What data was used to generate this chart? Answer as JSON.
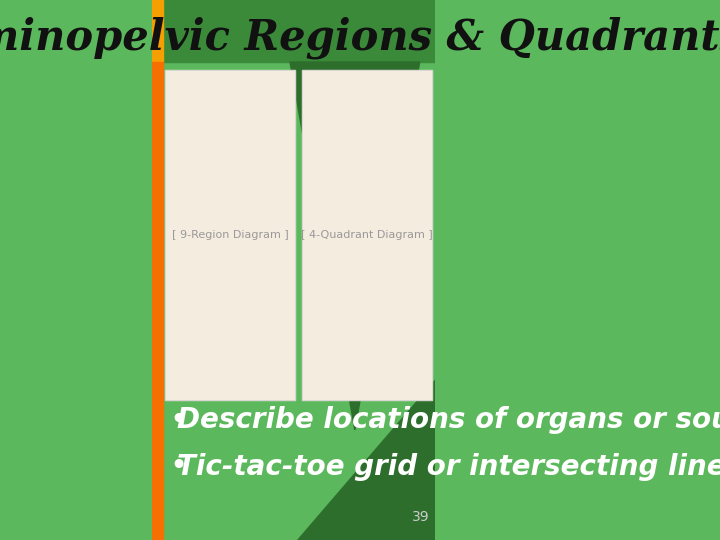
{
  "title": "Abdominopelvic Regions & Quadrants",
  "title_color": "#111111",
  "title_fontsize": 30,
  "bg_light_green": "#5cb85c",
  "bg_dark_green_header": "#3a8a3a",
  "orange_strip_color": "#f5a000",
  "orange_strip_bottom_color": "#f57000",
  "dark_triangle_color": "#2d6e2d",
  "bullet1": "Describe locations of organs or source of pain",
  "bullet2": "Tic-tac-toe grid or intersecting lines through navel",
  "bullet_color": "#ffffff",
  "bullet_fontsize": 20,
  "page_number": "39",
  "slide_number_color": "#cccccc",
  "slide_number_fontsize": 10,
  "img_bg_color": "#f5ece0"
}
